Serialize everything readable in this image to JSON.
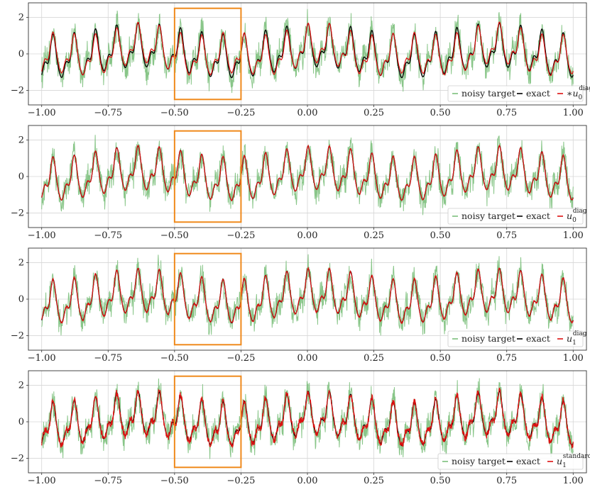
{
  "colors": {
    "noisy": "#7cc07c",
    "exact": "#000000",
    "approx": "#dd1111",
    "box": "#f08a1c",
    "grid": "#d6d6d6",
    "frame": "#333333"
  },
  "chart_data": [
    {
      "type": "line",
      "xlim": [
        -1.05,
        1.05
      ],
      "ylim": [
        -2.8,
        2.8
      ],
      "xticks": [
        "−1.00",
        "−0.75",
        "−0.50",
        "−0.25",
        "0.00",
        "0.25",
        "0.50",
        "0.75",
        "1.00"
      ],
      "yticks": [
        "−2",
        "0",
        "2"
      ],
      "grid": true,
      "legend_position": "lower-right",
      "highlight_box": {
        "x": [
          -0.5,
          -0.25
        ],
        "y": [
          -2.5,
          2.5
        ]
      },
      "series": [
        {
          "name": "noisy target",
          "style": "noisy"
        },
        {
          "name": "exact",
          "style": "exact"
        },
        {
          "name": "∗u",
          "sub": "0",
          "sup": "diag",
          "style": "approx",
          "approx_noise": 0.02,
          "approx_bias": 0.18
        }
      ]
    },
    {
      "type": "line",
      "xlim": [
        -1.05,
        1.05
      ],
      "ylim": [
        -2.8,
        2.8
      ],
      "xticks": [
        "−1.00",
        "−0.75",
        "−0.50",
        "−0.25",
        "0.00",
        "0.25",
        "0.50",
        "0.75",
        "1.00"
      ],
      "yticks": [
        "−2",
        "0",
        "2"
      ],
      "grid": true,
      "legend_position": "lower-right",
      "highlight_box": {
        "x": [
          -0.5,
          -0.25
        ],
        "y": [
          -2.5,
          2.5
        ]
      },
      "series": [
        {
          "name": "noisy target",
          "style": "noisy"
        },
        {
          "name": "exact",
          "style": "exact"
        },
        {
          "name": "u",
          "sub": "0",
          "sup": "diag",
          "style": "approx",
          "approx_noise": 0.03,
          "approx_bias": 0.0
        }
      ]
    },
    {
      "type": "line",
      "xlim": [
        -1.05,
        1.05
      ],
      "ylim": [
        -2.8,
        2.8
      ],
      "xticks": [
        "−1.00",
        "−0.75",
        "−0.50",
        "−0.25",
        "0.00",
        "0.25",
        "0.50",
        "0.75",
        "1.00"
      ],
      "yticks": [
        "−2",
        "0",
        "2"
      ],
      "grid": true,
      "legend_position": "lower-right",
      "highlight_box": {
        "x": [
          -0.5,
          -0.25
        ],
        "y": [
          -2.5,
          2.5
        ]
      },
      "series": [
        {
          "name": "noisy target",
          "style": "noisy"
        },
        {
          "name": "exact",
          "style": "exact"
        },
        {
          "name": "u",
          "sub": "1",
          "sup": "diag",
          "style": "approx",
          "approx_noise": 0.05,
          "approx_bias": 0.0
        }
      ]
    },
    {
      "type": "line",
      "xlim": [
        -1.05,
        1.05
      ],
      "ylim": [
        -2.8,
        2.8
      ],
      "xticks": [
        "−1.00",
        "−0.75",
        "−0.50",
        "−0.25",
        "0.00",
        "0.25",
        "0.50",
        "0.75",
        "1.00"
      ],
      "yticks": [
        "−2",
        "0",
        "2"
      ],
      "grid": true,
      "legend_position": "lower-right",
      "highlight_box": {
        "x": [
          -0.5,
          -0.25
        ],
        "y": [
          -2.5,
          2.5
        ]
      },
      "series": [
        {
          "name": "noisy target",
          "style": "noisy"
        },
        {
          "name": "exact",
          "style": "exact"
        },
        {
          "name": "u",
          "sub": "1",
          "sup": "standard",
          "style": "approx",
          "approx_noise": 0.2,
          "approx_bias": 0.0
        }
      ]
    }
  ]
}
